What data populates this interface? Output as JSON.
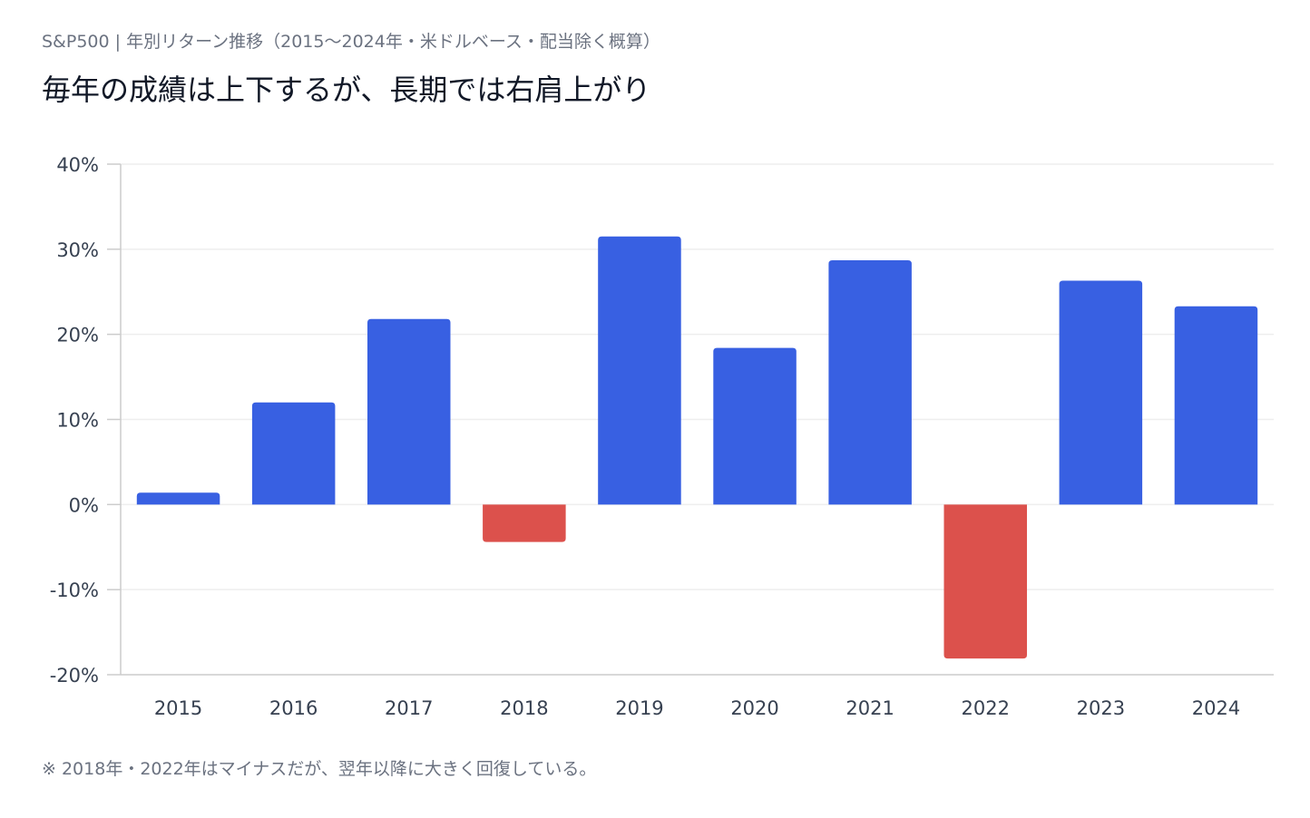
{
  "header": {
    "subtitle": "S&P500 | 年別リターン推移（2015〜2024年・米ドルベース・配当除く概算）",
    "title": "毎年の成績は上下するが、長期では右肩上がり"
  },
  "footer": {
    "note": "※ 2018年・2022年はマイナスだが、翌年以降に大きく回復している。"
  },
  "colors": {
    "positive": "#3860e2",
    "negative": "#dc514c",
    "grid": "#eeeeee",
    "axis": "#cccccc"
  },
  "chart_data": {
    "type": "bar",
    "categories": [
      "2015",
      "2016",
      "2017",
      "2018",
      "2019",
      "2020",
      "2021",
      "2022",
      "2023",
      "2024"
    ],
    "values": [
      1.4,
      12.0,
      21.8,
      -4.4,
      31.5,
      18.4,
      28.7,
      -18.1,
      26.3,
      23.3
    ],
    "unit": "%",
    "ylim": [
      -20,
      40
    ],
    "yticks": [
      "40%",
      "30%",
      "20%",
      "10%",
      "0%",
      "-10%",
      "-20%"
    ],
    "ytick_values": [
      40,
      30,
      20,
      10,
      0,
      -10,
      -20
    ],
    "grid": true,
    "legend": "none"
  }
}
